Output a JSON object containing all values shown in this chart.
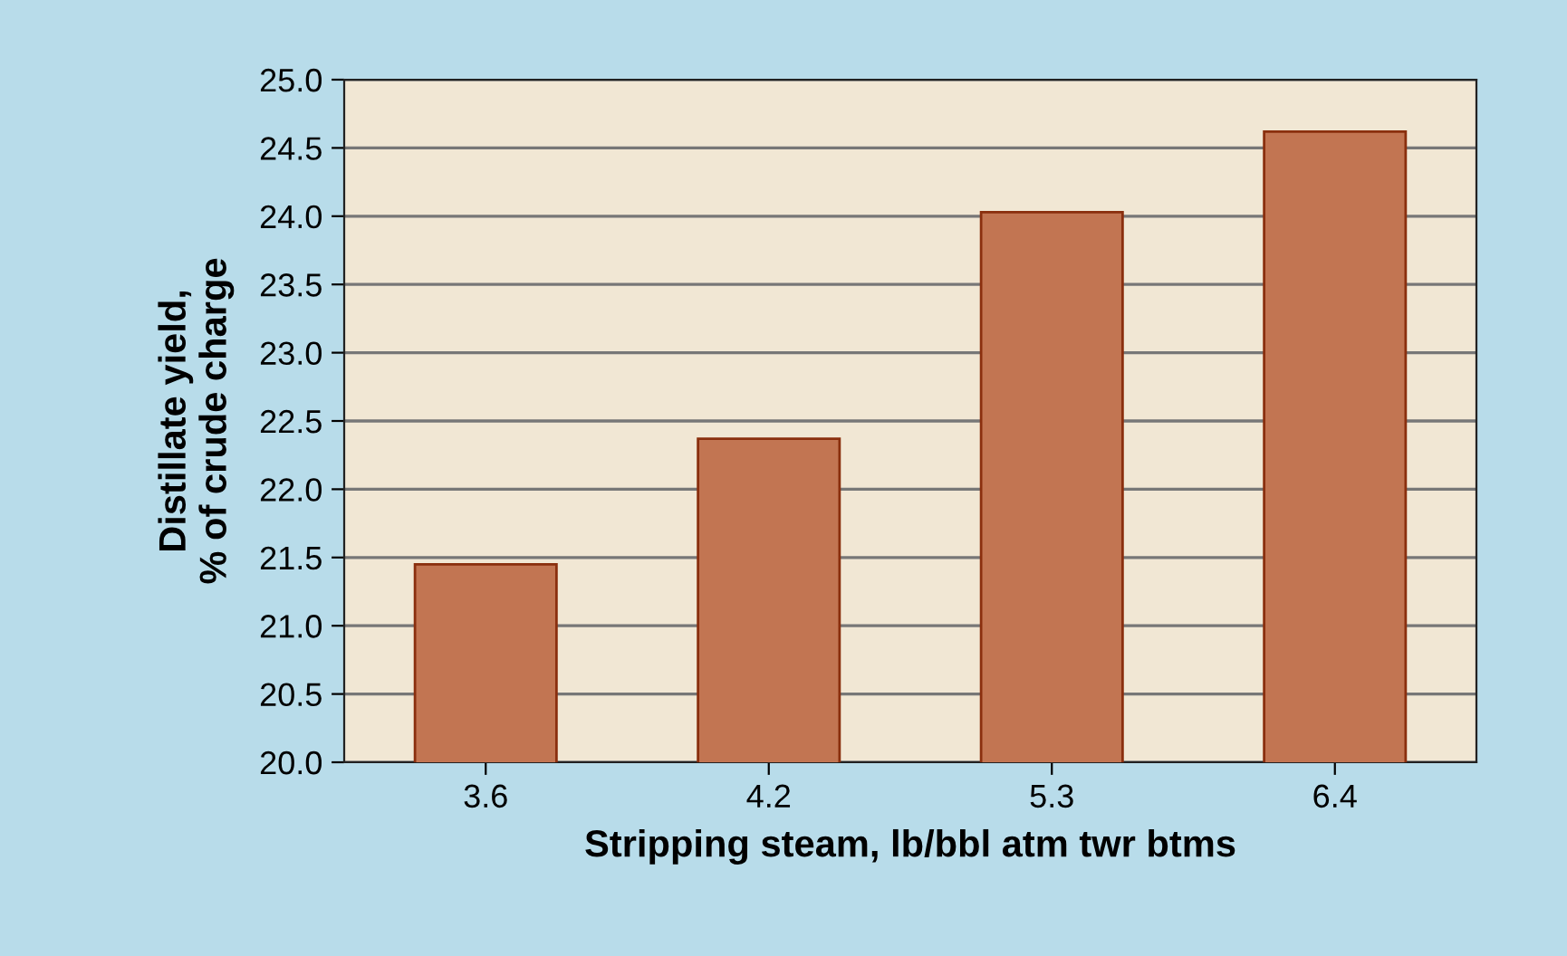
{
  "chart_data": {
    "type": "bar",
    "xlabel": "Stripping steam, lb/bbl atm twr btms",
    "ylabel": "Distillate yield,\n% of crude charge",
    "categories": [
      "3.6",
      "4.2",
      "5.3",
      "6.4"
    ],
    "values": [
      21.45,
      22.37,
      24.03,
      24.62
    ],
    "color": "#c27552",
    "ylim": [
      20.0,
      25.0
    ],
    "yticks": [
      {
        "value": 20.0,
        "label": "20.0"
      },
      {
        "value": 20.5,
        "label": "20.5"
      },
      {
        "value": 21.0,
        "label": "21.0"
      },
      {
        "value": 21.5,
        "label": "21.5"
      },
      {
        "value": 22.0,
        "label": "22.0"
      },
      {
        "value": 22.5,
        "label": "22.5"
      },
      {
        "value": 23.0,
        "label": "23.0"
      },
      {
        "value": 23.5,
        "label": "23.5"
      },
      {
        "value": 24.0,
        "label": "24.0"
      },
      {
        "value": 24.5,
        "label": "24.5"
      },
      {
        "value": 25.0,
        "label": "25.0"
      }
    ],
    "grid": "y"
  }
}
